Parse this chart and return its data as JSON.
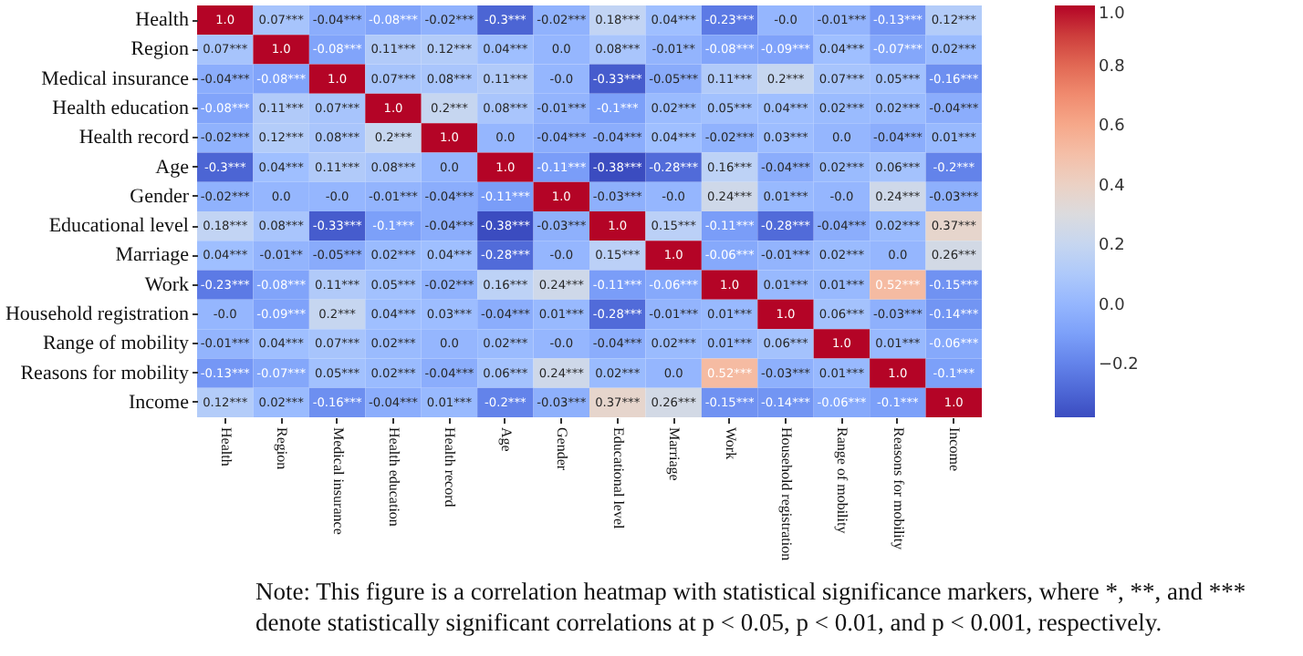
{
  "chart_data": {
    "type": "heatmap",
    "categories": [
      "Health",
      "Region",
      "Medical insurance",
      "Health education",
      "Health record",
      "Age",
      "Gender",
      "Educational level",
      "Marriage",
      "Work",
      "Household registration",
      "Range of mobility",
      "Reasons for mobility",
      "Income"
    ],
    "y_categories": [
      "Health",
      "Region",
      "Medical insurance",
      "Health education",
      "Health record",
      "Age",
      "Gender",
      "Educational level",
      "Marriage",
      "Work",
      "Household registration",
      "Range of mobility",
      "Reasons for mobility",
      "Income"
    ],
    "cells": [
      [
        1.0,
        0.07,
        -0.04,
        -0.08,
        -0.02,
        -0.3,
        -0.02,
        0.18,
        0.04,
        -0.23,
        0,
        -0.01,
        -0.13,
        0.12
      ],
      [
        0.07,
        1.0,
        -0.08,
        0.11,
        0.12,
        0.04,
        0,
        0.08,
        -0.01,
        -0.08,
        -0.09,
        0.04,
        -0.07,
        0.02
      ],
      [
        -0.04,
        -0.08,
        1.0,
        0.07,
        0.08,
        0.11,
        0,
        -0.33,
        -0.05,
        0.11,
        0.2,
        0.07,
        0.05,
        -0.16
      ],
      [
        -0.08,
        0.11,
        0.07,
        1.0,
        0.2,
        0.08,
        -0.01,
        -0.1,
        0.02,
        0.05,
        0.04,
        0.02,
        0.02,
        -0.04
      ],
      [
        -0.02,
        0.12,
        0.08,
        0.2,
        1.0,
        0,
        -0.04,
        -0.04,
        0.04,
        -0.02,
        0.03,
        0,
        -0.04,
        0.01
      ],
      [
        -0.3,
        0.04,
        0.11,
        0.08,
        0,
        1.0,
        -0.11,
        -0.38,
        -0.28,
        0.16,
        -0.04,
        0.02,
        0.06,
        -0.2
      ],
      [
        -0.02,
        0,
        0,
        -0.01,
        -0.04,
        -0.11,
        1.0,
        -0.03,
        0,
        0.24,
        0.01,
        0,
        0.24,
        -0.03
      ],
      [
        0.18,
        0.08,
        -0.33,
        -0.1,
        -0.04,
        -0.38,
        -0.03,
        1.0,
        0.15,
        -0.11,
        -0.28,
        -0.04,
        0.02,
        0.37
      ],
      [
        0.04,
        -0.01,
        -0.05,
        0.02,
        0.04,
        -0.28,
        0,
        0.15,
        1.0,
        -0.06,
        -0.01,
        0.02,
        0,
        0.26
      ],
      [
        -0.23,
        -0.08,
        0.11,
        0.05,
        -0.02,
        0.16,
        0.24,
        -0.11,
        -0.06,
        1.0,
        0.01,
        0.01,
        0.52,
        -0.15
      ],
      [
        0,
        -0.09,
        0.2,
        0.04,
        0.03,
        -0.04,
        0.01,
        -0.28,
        -0.01,
        0.01,
        1.0,
        0.06,
        -0.03,
        -0.14
      ],
      [
        -0.01,
        0.04,
        0.07,
        0.02,
        0,
        0.02,
        0,
        -0.04,
        0.02,
        0.01,
        0.06,
        1.0,
        0.01,
        -0.06
      ],
      [
        -0.13,
        -0.07,
        0.05,
        0.02,
        -0.04,
        0.06,
        0.24,
        0.02,
        0,
        0.52,
        -0.03,
        0.01,
        1.0,
        -0.1
      ],
      [
        0.12,
        0.02,
        -0.16,
        -0.04,
        0.01,
        -0.2,
        -0.03,
        0.37,
        0.26,
        -0.15,
        -0.14,
        -0.06,
        -0.1,
        1.0
      ]
    ],
    "cell_labels": [
      [
        "1.0",
        "0.07***",
        "-0.04***",
        "-0.08***",
        "-0.02***",
        "-0.3***",
        "-0.02***",
        "0.18***",
        "0.04***",
        "-0.23***",
        "-0.0",
        "-0.01***",
        "-0.13***",
        "0.12***"
      ],
      [
        "0.07***",
        "1.0",
        "-0.08***",
        "0.11***",
        "0.12***",
        "0.04***",
        "0.0",
        "0.08***",
        "-0.01**",
        "-0.08***",
        "-0.09***",
        "0.04***",
        "-0.07***",
        "0.02***"
      ],
      [
        "-0.04***",
        "-0.08***",
        "1.0",
        "0.07***",
        "0.08***",
        "0.11***",
        "-0.0",
        "-0.33***",
        "-0.05***",
        "0.11***",
        "0.2***",
        "0.07***",
        "0.05***",
        "-0.16***"
      ],
      [
        "-0.08***",
        "0.11***",
        "0.07***",
        "1.0",
        "0.2***",
        "0.08***",
        "-0.01***",
        "-0.1***",
        "0.02***",
        "0.05***",
        "0.04***",
        "0.02***",
        "0.02***",
        "-0.04***"
      ],
      [
        "-0.02***",
        "0.12***",
        "0.08***",
        "0.2***",
        "1.0",
        "0.0",
        "-0.04***",
        "-0.04***",
        "0.04***",
        "-0.02***",
        "0.03***",
        "0.0",
        "-0.04***",
        "0.01***"
      ],
      [
        "-0.3***",
        "0.04***",
        "0.11***",
        "0.08***",
        "0.0",
        "1.0",
        "-0.11***",
        "-0.38***",
        "-0.28***",
        "0.16***",
        "-0.04***",
        "0.02***",
        "0.06***",
        "-0.2***"
      ],
      [
        "-0.02***",
        "0.0",
        "-0.0",
        "-0.01***",
        "-0.04***",
        "-0.11***",
        "1.0",
        "-0.03***",
        "-0.0",
        "0.24***",
        "0.01***",
        "-0.0",
        "0.24***",
        "-0.03***"
      ],
      [
        "0.18***",
        "0.08***",
        "-0.33***",
        "-0.1***",
        "-0.04***",
        "-0.38***",
        "-0.03***",
        "1.0",
        "0.15***",
        "-0.11***",
        "-0.28***",
        "-0.04***",
        "0.02***",
        "0.37***"
      ],
      [
        "0.04***",
        "-0.01**",
        "-0.05***",
        "0.02***",
        "0.04***",
        "-0.28***",
        "-0.0",
        "0.15***",
        "1.0",
        "-0.06***",
        "-0.01***",
        "0.02***",
        "0.0",
        "0.26***"
      ],
      [
        "-0.23***",
        "-0.08***",
        "0.11***",
        "0.05***",
        "-0.02***",
        "0.16***",
        "0.24***",
        "-0.11***",
        "-0.06***",
        "1.0",
        "0.01***",
        "0.01***",
        "0.52***",
        "-0.15***"
      ],
      [
        "-0.0",
        "-0.09***",
        "0.2***",
        "0.04***",
        "0.03***",
        "-0.04***",
        "0.01***",
        "-0.28***",
        "-0.01***",
        "0.01***",
        "1.0",
        "0.06***",
        "-0.03***",
        "-0.14***"
      ],
      [
        "-0.01***",
        "0.04***",
        "0.07***",
        "0.02***",
        "0.0",
        "0.02***",
        "-0.0",
        "-0.04***",
        "0.02***",
        "0.01***",
        "0.06***",
        "1.0",
        "0.01***",
        "-0.06***"
      ],
      [
        "-0.13***",
        "-0.07***",
        "0.05***",
        "0.02***",
        "-0.04***",
        "0.06***",
        "0.24***",
        "0.02***",
        "0.0",
        "0.52***",
        "-0.03***",
        "0.01***",
        "1.0",
        "-0.1***"
      ],
      [
        "0.12***",
        "0.02***",
        "-0.16***",
        "-0.04***",
        "0.01***",
        "-0.2***",
        "-0.03***",
        "0.37***",
        "0.26***",
        "-0.15***",
        "-0.14***",
        "-0.06***",
        "-0.1***",
        "1.0"
      ]
    ],
    "clim": [
      -0.38,
      1.0
    ],
    "cticks": [
      {
        "value": -0.2,
        "label": "−0.2"
      },
      {
        "value": 0,
        "label": "0.0"
      },
      {
        "value": 0.2,
        "label": "0.2"
      },
      {
        "value": 0.4,
        "label": "0.4"
      },
      {
        "value": 0.6,
        "label": "0.6"
      },
      {
        "value": 0.8,
        "label": "0.8"
      },
      {
        "value": 1,
        "label": "1.0"
      }
    ],
    "annotations": [
      "Note: This figure is a correlation heatmap with statistical significance markers, where *, **, and *** denote statistically significant correlations at p < 0.05, p < 0.01, and p < 0.001, respectively."
    ]
  }
}
